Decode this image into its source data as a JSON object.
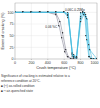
{
  "chart_data": {
    "type": "line",
    "xlabel": "Crush temperature (°C)",
    "ylabel": "Extent of cracking (%)",
    "xlim": [
      0,
      1000
    ],
    "ylim": [
      0,
      120
    ],
    "xticks": [
      0,
      200,
      400,
      600,
      800,
      1000
    ],
    "yticks": [
      0,
      25,
      50,
      75,
      100
    ],
    "marker": "square",
    "series": [
      {
        "color": "#888899",
        "x": [
          0,
          100,
          200,
          300,
          400,
          500,
          550,
          580,
          620,
          650,
          700,
          750
        ],
        "values": [
          100,
          100,
          100,
          100,
          100,
          98,
          80,
          55,
          20,
          5,
          0,
          0
        ]
      },
      {
        "color": "#888899",
        "x": [
          0,
          100,
          200,
          300,
          400,
          500,
          540,
          570,
          610,
          640,
          680,
          720
        ],
        "values": [
          100,
          100,
          100,
          100,
          100,
          95,
          70,
          45,
          15,
          5,
          0,
          0
        ]
      },
      {
        "color": "#44bbdd",
        "x": [
          0,
          100,
          200,
          300,
          400,
          500,
          600,
          650,
          700,
          720,
          750,
          800,
          830,
          850,
          870,
          900,
          930,
          960,
          1000
        ],
        "values": [
          100,
          100,
          100,
          100,
          100,
          100,
          100,
          98,
          5,
          3,
          2,
          98,
          100,
          98,
          50,
          5,
          0,
          0,
          0
        ]
      },
      {
        "color": "#44bbdd",
        "x": [
          0,
          100,
          200,
          300,
          400,
          500,
          600,
          650,
          700,
          720,
          750,
          800,
          830,
          860,
          880,
          910,
          940,
          1000
        ],
        "values": [
          100,
          100,
          100,
          100,
          100,
          100,
          100,
          95,
          8,
          5,
          3,
          90,
          100,
          95,
          40,
          5,
          0,
          0
        ]
      },
      {
        "color": "#44bbdd",
        "x": [
          0,
          100,
          200,
          300,
          400,
          500,
          600,
          650,
          700,
          720,
          750,
          800,
          830,
          870,
          900,
          940,
          1000
        ],
        "values": [
          100,
          100,
          100,
          100,
          100,
          100,
          100,
          92,
          10,
          5,
          3,
          85,
          98,
          90,
          30,
          0,
          0
        ]
      },
      {
        "color": "#44bbdd",
        "x": [
          0,
          100,
          200,
          300,
          400,
          500,
          600,
          650,
          700,
          720,
          750,
          800,
          840,
          880,
          910,
          1000
        ],
        "values": [
          100,
          100,
          100,
          100,
          100,
          100,
          100,
          88,
          12,
          8,
          5,
          80,
          95,
          85,
          20,
          0
        ]
      }
    ],
    "annotations": [
      {
        "text": "0.06C-0.25Mo",
        "x": 610,
        "y": 108
      },
      {
        "text": "0.06 %C",
        "x": 370,
        "y": 72
      }
    ],
    "footnote": [
      "Significance of cracking is estimated relative to a",
      "reference condition at 20°C.",
      "■ (□) as-rolled condition",
      "■ □  air-quenched state"
    ]
  }
}
